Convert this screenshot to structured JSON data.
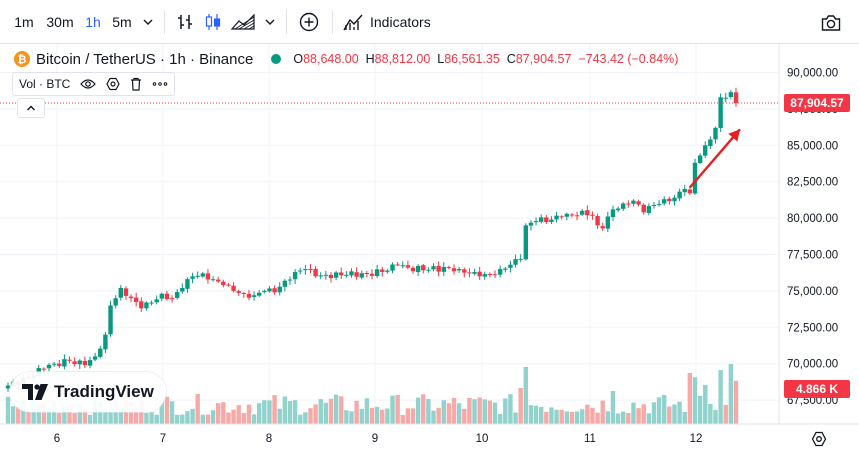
{
  "toolbar": {
    "intervals": [
      {
        "label": "1m",
        "active": false
      },
      {
        "label": "30m",
        "active": false
      },
      {
        "label": "1h",
        "active": true
      },
      {
        "label": "5m",
        "active": false
      }
    ],
    "indicators_label": "Indicators",
    "icons": [
      "chevron-down-icon",
      "bar-chart-icon",
      "candles-icon",
      "area-chart-icon",
      "chevron-down-icon",
      "add-circle-icon",
      "indicators-icon",
      "camera-icon"
    ]
  },
  "legend": {
    "symbol": "Bitcoin / TetherUS · 1h · Binance",
    "open_key": "O",
    "open": "88,648.00",
    "high_key": "H",
    "high": "88,812.00",
    "low_key": "L",
    "low": "86,561.35",
    "close_key": "C",
    "close": "87,904.57",
    "change": "−743.42 (−0.84%)"
  },
  "volume_pill": {
    "label": "Vol · BTC"
  },
  "logo": {
    "text": "TradingView"
  },
  "colors": {
    "up": "#089981",
    "down": "#f23645",
    "vol_up": "#92d2cc",
    "vol_down": "#f7a9a7",
    "last_price": "#f23645"
  },
  "chart_data": {
    "type": "candlestick",
    "y_ticks": [
      "90,000.00",
      "87,500.00",
      "85,000.00",
      "82,500.00",
      "80,000.00",
      "77,500.00",
      "75,000.00",
      "72,500.00",
      "70,000.00",
      "67,500.00"
    ],
    "y_tick_values": [
      90000,
      87500,
      85000,
      82500,
      80000,
      77500,
      75000,
      72500,
      70000,
      67500
    ],
    "x_ticks": [
      "6",
      "7",
      "8",
      "9",
      "10",
      "11",
      "12"
    ],
    "last_price_label": "87,904.57",
    "last_price": 87904.57,
    "volume_label": "4.866 K",
    "anchors": [
      [
        0,
        68500
      ],
      [
        4,
        69000
      ],
      [
        6,
        69700
      ],
      [
        9,
        70000
      ],
      [
        12,
        70200
      ],
      [
        15,
        69900
      ],
      [
        17,
        70500
      ],
      [
        19,
        72000
      ],
      [
        20,
        74000
      ],
      [
        22,
        75200
      ],
      [
        24,
        74500
      ],
      [
        26,
        73800
      ],
      [
        28,
        74200
      ],
      [
        30,
        74800
      ],
      [
        32,
        74500
      ],
      [
        34,
        75200
      ],
      [
        36,
        76000
      ],
      [
        38,
        76200
      ],
      [
        40,
        75800
      ],
      [
        42,
        75400
      ],
      [
        44,
        75000
      ],
      [
        46,
        74800
      ],
      [
        48,
        74700
      ],
      [
        50,
        75000
      ],
      [
        52,
        74900
      ],
      [
        54,
        75700
      ],
      [
        56,
        76300
      ],
      [
        58,
        76500
      ],
      [
        60,
        76000
      ],
      [
        62,
        76100
      ],
      [
        66,
        76100
      ],
      [
        70,
        76200
      ],
      [
        74,
        76400
      ],
      [
        76,
        76800
      ],
      [
        78,
        76600
      ],
      [
        82,
        76450
      ],
      [
        86,
        76600
      ],
      [
        88,
        76500
      ],
      [
        90,
        76200
      ],
      [
        92,
        76000
      ],
      [
        94,
        76100
      ],
      [
        96,
        76500
      ],
      [
        98,
        76800
      ],
      [
        100,
        77200
      ],
      [
        101,
        79500
      ],
      [
        103,
        79800
      ],
      [
        106,
        79900
      ],
      [
        108,
        80100
      ],
      [
        110,
        80200
      ],
      [
        112,
        80500
      ],
      [
        114,
        80200
      ],
      [
        115,
        79500
      ],
      [
        116,
        79300
      ],
      [
        118,
        80600
      ],
      [
        120,
        81000
      ],
      [
        122,
        81200
      ],
      [
        124,
        80400
      ],
      [
        126,
        80900
      ],
      [
        128,
        81300
      ],
      [
        130,
        81400
      ],
      [
        132,
        82000
      ],
      [
        133,
        81700
      ],
      [
        134,
        83800
      ],
      [
        136,
        85000
      ],
      [
        138,
        86200
      ],
      [
        139,
        88300
      ],
      [
        141,
        88650
      ],
      [
        142,
        87904.57
      ]
    ],
    "volume_markers": [
      {
        "i": 100,
        "v": 0.6
      },
      {
        "i": 101,
        "v": 0.95
      },
      {
        "i": 118,
        "v": 0.55
      },
      {
        "i": 133,
        "v": 0.85
      },
      {
        "i": 134,
        "v": 0.78
      },
      {
        "i": 136,
        "v": 0.65
      },
      {
        "i": 139,
        "v": 0.9
      },
      {
        "i": 141,
        "v": 1.0
      },
      {
        "i": 142,
        "v": 0.72
      }
    ],
    "arrow": {
      "from": [
        133,
        82100
      ],
      "to": [
        142,
        86100
      ]
    }
  }
}
